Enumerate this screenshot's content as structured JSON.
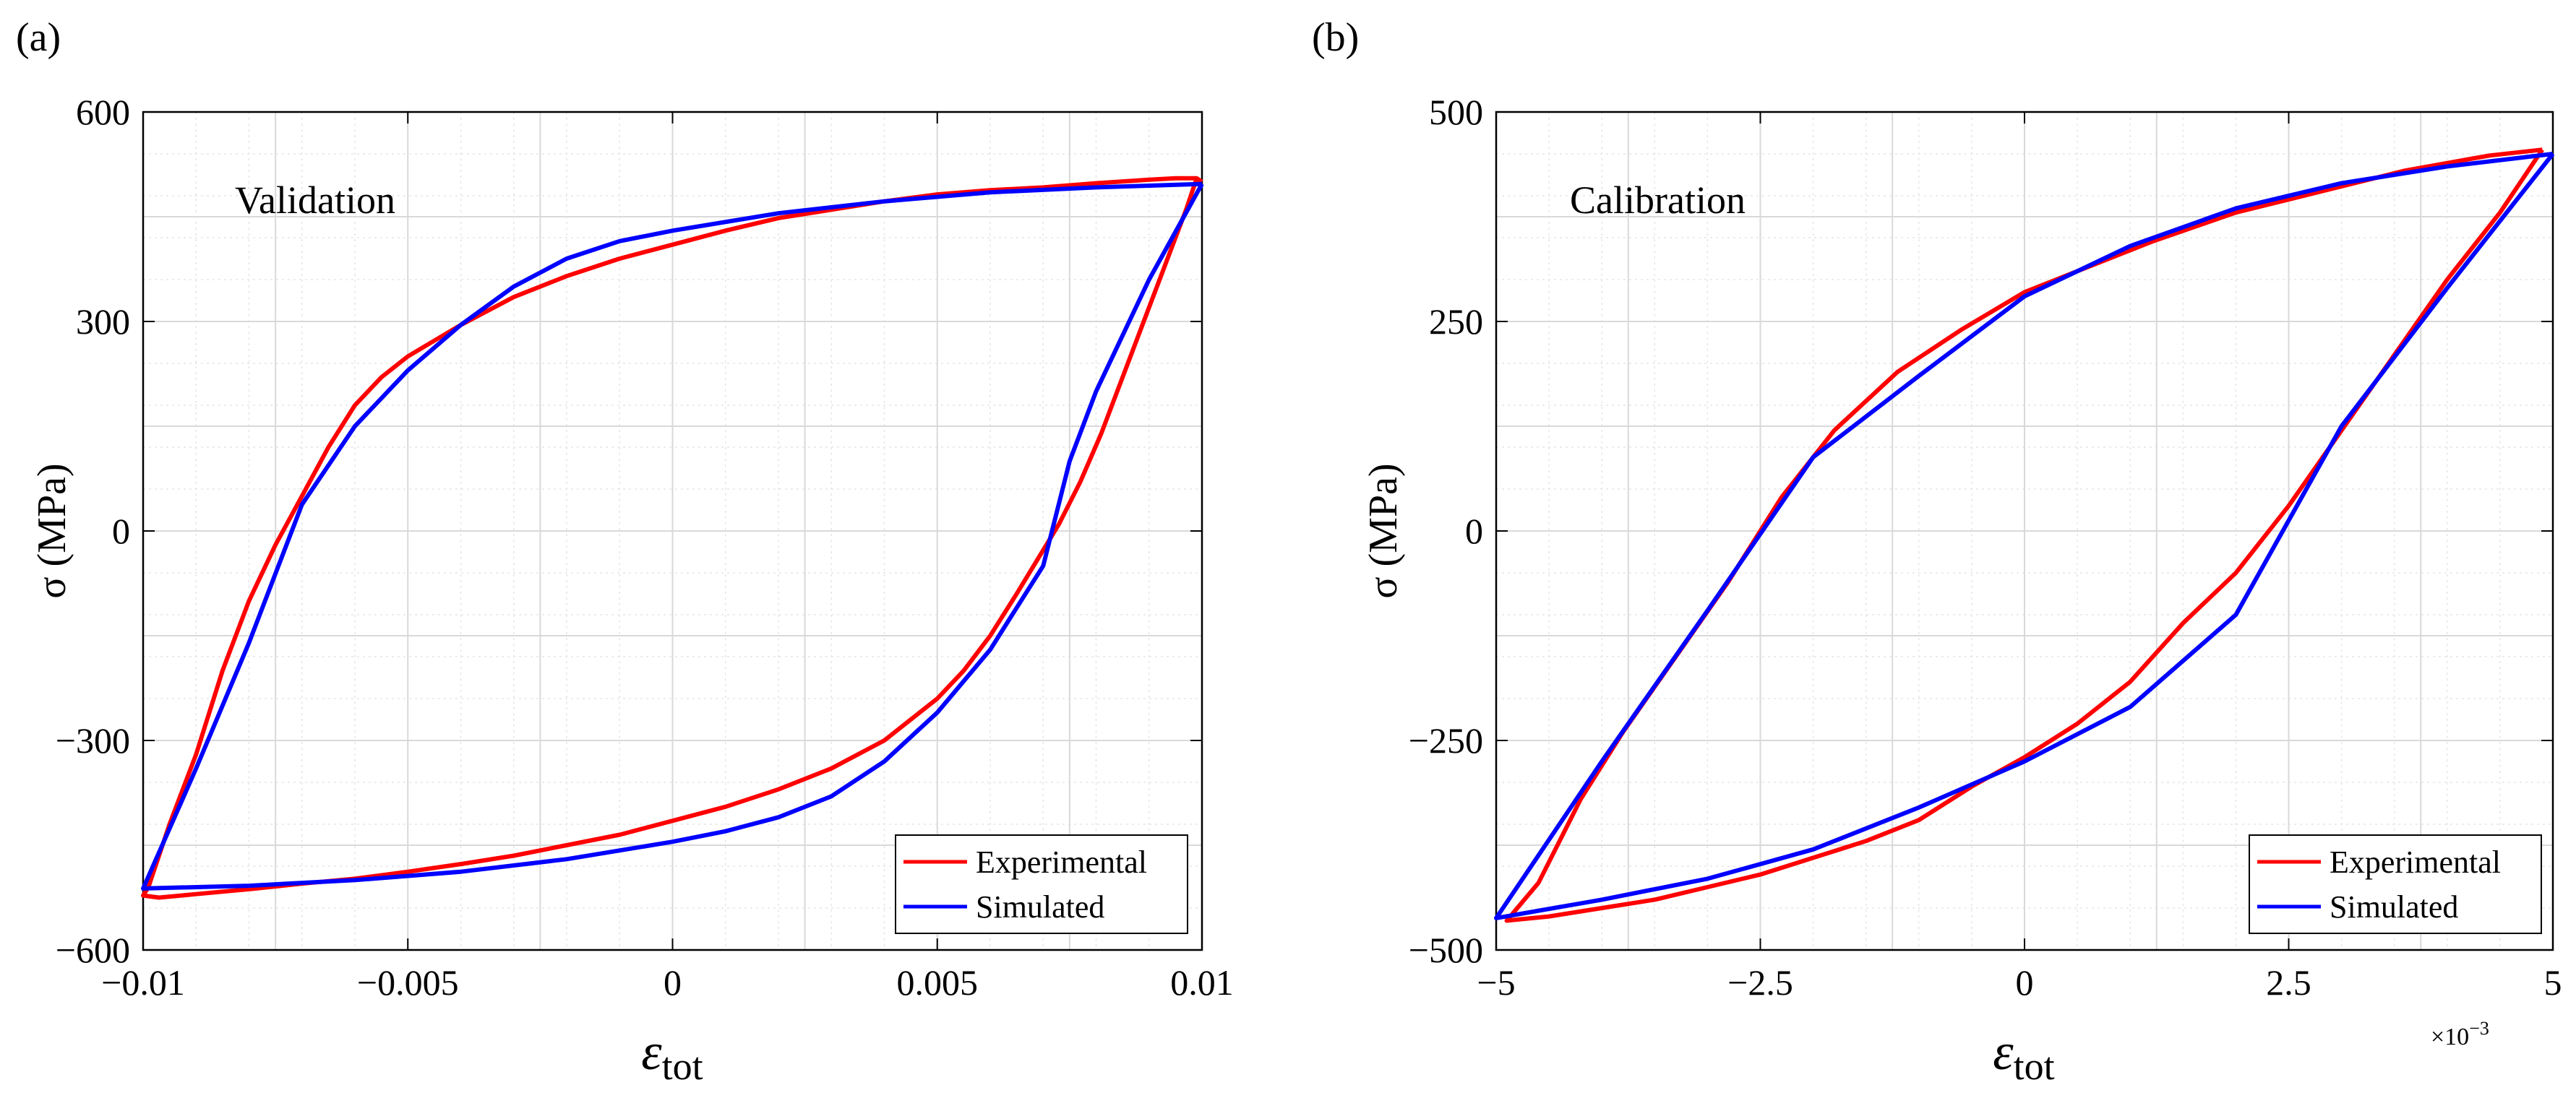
{
  "chart_data": [
    {
      "type": "line",
      "panel_label": "(a)",
      "annotation": "Validation",
      "xlabel": "ε",
      "xlabel_sub": "tot",
      "ylabel": "σ (MPa)",
      "xlim": [
        -0.01,
        0.01
      ],
      "ylim": [
        -600,
        600
      ],
      "xticks": [
        -0.01,
        -0.005,
        0,
        0.005,
        0.01
      ],
      "xtick_labels": [
        "−0.01",
        "−0.005",
        "0",
        "0.005",
        "0.01"
      ],
      "yticks": [
        -600,
        -300,
        0,
        300,
        600
      ],
      "ytick_labels": [
        "−600",
        "−300",
        "0",
        "300",
        "600"
      ],
      "grid": true,
      "legend_position": "bottom-right",
      "series": [
        {
          "name": "Experimental",
          "color": "#ff0000",
          "points": [
            [
              0.0099,
              505
            ],
            [
              0.0097,
              460
            ],
            [
              0.0093,
              380
            ],
            [
              0.0089,
              300
            ],
            [
              0.0085,
              220
            ],
            [
              0.0081,
              140
            ],
            [
              0.0077,
              70
            ],
            [
              0.0073,
              10
            ],
            [
              0.0069,
              -40
            ],
            [
              0.0065,
              -90
            ],
            [
              0.006,
              -150
            ],
            [
              0.0055,
              -200
            ],
            [
              0.005,
              -240
            ],
            [
              0.0045,
              -270
            ],
            [
              0.004,
              -300
            ],
            [
              0.003,
              -340
            ],
            [
              0.002,
              -370
            ],
            [
              0.001,
              -395
            ],
            [
              0,
              -415
            ],
            [
              -0.001,
              -435
            ],
            [
              -0.002,
              -450
            ],
            [
              -0.003,
              -465
            ],
            [
              -0.004,
              -477
            ],
            [
              -0.005,
              -488
            ],
            [
              -0.006,
              -498
            ],
            [
              -0.007,
              -505
            ],
            [
              -0.008,
              -513
            ],
            [
              -0.009,
              -520
            ],
            [
              -0.0097,
              -525
            ],
            [
              -0.01,
              -522
            ],
            [
              -0.0099,
              -510
            ],
            [
              -0.0095,
              -420
            ],
            [
              -0.009,
              -320
            ],
            [
              -0.0085,
              -200
            ],
            [
              -0.008,
              -100
            ],
            [
              -0.0075,
              -20
            ],
            [
              -0.007,
              50
            ],
            [
              -0.0065,
              120
            ],
            [
              -0.006,
              180
            ],
            [
              -0.0055,
              220
            ],
            [
              -0.005,
              250
            ],
            [
              -0.004,
              295
            ],
            [
              -0.003,
              335
            ],
            [
              -0.002,
              365
            ],
            [
              -0.001,
              390
            ],
            [
              0,
              410
            ],
            [
              0.001,
              430
            ],
            [
              0.002,
              448
            ],
            [
              0.003,
              460
            ],
            [
              0.004,
              472
            ],
            [
              0.005,
              482
            ],
            [
              0.006,
              488
            ],
            [
              0.007,
              492
            ],
            [
              0.008,
              498
            ],
            [
              0.009,
              503
            ],
            [
              0.0095,
              505
            ],
            [
              0.0099,
              505
            ],
            [
              0.01,
              500
            ]
          ]
        },
        {
          "name": "Simulated",
          "color": "#0000ff",
          "points": [
            [
              0.01,
              497
            ],
            [
              0.009,
              360
            ],
            [
              0.008,
              200
            ],
            [
              0.0075,
              100
            ],
            [
              0.007,
              -50
            ],
            [
              0.0065,
              -110
            ],
            [
              0.006,
              -170
            ],
            [
              0.005,
              -260
            ],
            [
              0.004,
              -330
            ],
            [
              0.003,
              -380
            ],
            [
              0.002,
              -410
            ],
            [
              0.001,
              -430
            ],
            [
              0,
              -445
            ],
            [
              -0.002,
              -470
            ],
            [
              -0.004,
              -488
            ],
            [
              -0.006,
              -500
            ],
            [
              -0.008,
              -508
            ],
            [
              -0.01,
              -512
            ],
            [
              -0.009,
              -340
            ],
            [
              -0.008,
              -160
            ],
            [
              -0.007,
              38
            ],
            [
              -0.006,
              150
            ],
            [
              -0.005,
              230
            ],
            [
              -0.004,
              295
            ],
            [
              -0.003,
              350
            ],
            [
              -0.002,
              390
            ],
            [
              -0.001,
              415
            ],
            [
              0,
              430
            ],
            [
              0.002,
              455
            ],
            [
              0.004,
              472
            ],
            [
              0.006,
              485
            ],
            [
              0.008,
              492
            ],
            [
              0.01,
              497
            ]
          ]
        }
      ]
    },
    {
      "type": "line",
      "panel_label": "(b)",
      "annotation": "Calibration",
      "xlabel": "ε",
      "xlabel_sub": "tot",
      "ylabel": "σ (MPa)",
      "xlim": [
        -5,
        5
      ],
      "ylim": [
        -500,
        500
      ],
      "xscale_label": "×10",
      "xscale_exponent": "−3",
      "xticks": [
        -5,
        -2.5,
        0,
        2.5,
        5
      ],
      "xtick_labels": [
        "−5",
        "−2.5",
        "0",
        "2.5",
        "5"
      ],
      "yticks": [
        -500,
        -250,
        0,
        250,
        500
      ],
      "ytick_labels": [
        "−500",
        "−250",
        "0",
        "250",
        "500"
      ],
      "grid": true,
      "legend_position": "bottom-right",
      "series": [
        {
          "name": "Experimental",
          "color": "#ff0000",
          "points": [
            [
              4.9,
              455
            ],
            [
              4.5,
              380
            ],
            [
              4,
              300
            ],
            [
              3.5,
              210
            ],
            [
              3,
              120
            ],
            [
              2.5,
              30
            ],
            [
              2,
              -50
            ],
            [
              1.5,
              -110
            ],
            [
              1,
              -180
            ],
            [
              0.5,
              -230
            ],
            [
              0,
              -270
            ],
            [
              -0.5,
              -305
            ],
            [
              -1,
              -345
            ],
            [
              -1.5,
              -370
            ],
            [
              -2,
              -390
            ],
            [
              -2.5,
              -410
            ],
            [
              -3,
              -425
            ],
            [
              -3.5,
              -440
            ],
            [
              -4,
              -450
            ],
            [
              -4.5,
              -460
            ],
            [
              -4.9,
              -465
            ],
            [
              -4.6,
              -420
            ],
            [
              -4.2,
              -320
            ],
            [
              -3.8,
              -240
            ],
            [
              -3.3,
              -150
            ],
            [
              -2.8,
              -60
            ],
            [
              -2.3,
              40
            ],
            [
              -1.8,
              120
            ],
            [
              -1.2,
              190
            ],
            [
              -0.6,
              240
            ],
            [
              0,
              285
            ],
            [
              0.6,
              315
            ],
            [
              1.2,
              345
            ],
            [
              2,
              380
            ],
            [
              2.8,
              405
            ],
            [
              3.6,
              430
            ],
            [
              4.4,
              448
            ],
            [
              4.9,
              455
            ]
          ]
        },
        {
          "name": "Simulated",
          "color": "#0000ff",
          "points": [
            [
              5,
              450
            ],
            [
              4,
              290
            ],
            [
              3,
              125
            ],
            [
              2,
              -100
            ],
            [
              1,
              -210
            ],
            [
              0,
              -275
            ],
            [
              -1,
              -330
            ],
            [
              -2,
              -380
            ],
            [
              -3,
              -415
            ],
            [
              -4,
              -440
            ],
            [
              -5,
              -462
            ],
            [
              -4,
              -275
            ],
            [
              -3,
              -95
            ],
            [
              -2,
              88
            ],
            [
              -1,
              185
            ],
            [
              0,
              280
            ],
            [
              1,
              340
            ],
            [
              2,
              385
            ],
            [
              3,
              415
            ],
            [
              4,
              435
            ],
            [
              5,
              450
            ]
          ]
        }
      ]
    }
  ]
}
